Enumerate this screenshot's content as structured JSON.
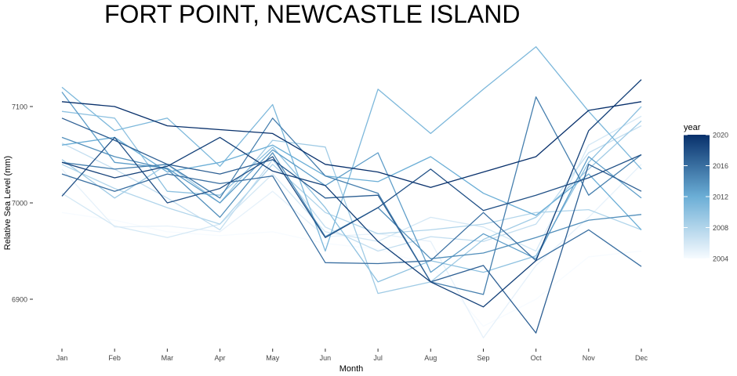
{
  "chart_data": {
    "type": "line",
    "title": "FORT POINT, NEWCASTLE ISLAND",
    "xlabel": "Month",
    "ylabel": "Relative Sea Level (mm)",
    "categories": [
      "Jan",
      "Feb",
      "Mar",
      "Apr",
      "May",
      "Jun",
      "Jul",
      "Aug",
      "Sep",
      "Oct",
      "Nov",
      "Dec"
    ],
    "ylim": [
      6845,
      7145
    ],
    "yticks": [
      6900,
      7000,
      7100
    ],
    "grid": false,
    "legend": {
      "title": "year",
      "position": "right",
      "range": [
        2004,
        2020
      ],
      "ticks": [
        2004,
        2008,
        2012,
        2016,
        2020
      ],
      "low_color": "#f7fbff",
      "mid_color": "#6baed6",
      "high_color": "#08306b"
    },
    "series": [
      {
        "year": 2004,
        "values": [
          6990,
          6982,
          6970,
          6966,
          6970,
          6958,
          6952,
          6935,
          6872,
          6900,
          6944,
          6950
        ]
      },
      {
        "year": 2005,
        "values": [
          7035,
          6975,
          6976,
          6970,
          7012,
          6965,
          6968,
          6960,
          6860,
          6935,
          6985,
          7040
        ]
      },
      {
        "year": 2006,
        "values": [
          7010,
          6976,
          6964,
          6978,
          7030,
          6970,
          6960,
          6985,
          6975,
          6950,
          7060,
          7090
        ]
      },
      {
        "year": 2007,
        "values": [
          7062,
          7035,
          7005,
          6972,
          7045,
          6975,
          6950,
          6965,
          6960,
          6978,
          7052,
          7080
        ]
      },
      {
        "year": 2008,
        "values": [
          7040,
          7015,
          6995,
          6978,
          7040,
          6990,
          6968,
          6972,
          6978,
          6990,
          6993,
          6972
        ]
      },
      {
        "year": 2009,
        "values": [
          7045,
          7005,
          7040,
          7000,
          7065,
          7058,
          6906,
          6918,
          6962,
          6985,
          7035,
          7085
        ]
      },
      {
        "year": 2010,
        "values": [
          7095,
          7088,
          7012,
          7008,
          7058,
          6995,
          6918,
          6940,
          6928,
          6945,
          7042,
          7100
        ]
      },
      {
        "year": 2011,
        "values": [
          7120,
          7075,
          7088,
          7038,
          7102,
          6950,
          7118,
          7072,
          7118,
          7162,
          7095,
          7035
        ]
      },
      {
        "year": 2012,
        "values": [
          7060,
          7068,
          7032,
          7042,
          7060,
          7028,
          7022,
          7048,
          7010,
          6987,
          7030,
          6972
        ]
      },
      {
        "year": 2013,
        "values": [
          7115,
          7042,
          7036,
          7000,
          7055,
          7018,
          7052,
          6928,
          6968,
          6942,
          7048,
          7005
        ]
      },
      {
        "year": 2014,
        "values": [
          7068,
          7048,
          7035,
          6985,
          7052,
          6965,
          6995,
          6942,
          6948,
          6964,
          6982,
          6988
        ]
      },
      {
        "year": 2015,
        "values": [
          7042,
          7035,
          7040,
          7005,
          7088,
          7028,
          7010,
          6918,
          6905,
          7110,
          7008,
          7050
        ]
      },
      {
        "year": 2016,
        "values": [
          7030,
          7012,
          7030,
          7020,
          7028,
          6938,
          6937,
          6940,
          6990,
          6940,
          6972,
          6934
        ]
      },
      {
        "year": 2017,
        "values": [
          7088,
          7065,
          7040,
          7030,
          7045,
          7005,
          7008,
          6918,
          6935,
          6865,
          7040,
          7012
        ]
      },
      {
        "year": 2018,
        "values": [
          7007,
          7068,
          7000,
          7015,
          7048,
          6964,
          6995,
          7035,
          6992,
          7008,
          7026,
          7050
        ]
      },
      {
        "year": 2019,
        "values": [
          7042,
          7026,
          7038,
          7068,
          7033,
          7018,
          6960,
          6918,
          6892,
          6940,
          7075,
          7128
        ]
      },
      {
        "year": 2020,
        "values": [
          7105,
          7100,
          7080,
          7076,
          7072,
          7040,
          7032,
          7016,
          7032,
          7048,
          7096,
          7105
        ]
      }
    ]
  }
}
